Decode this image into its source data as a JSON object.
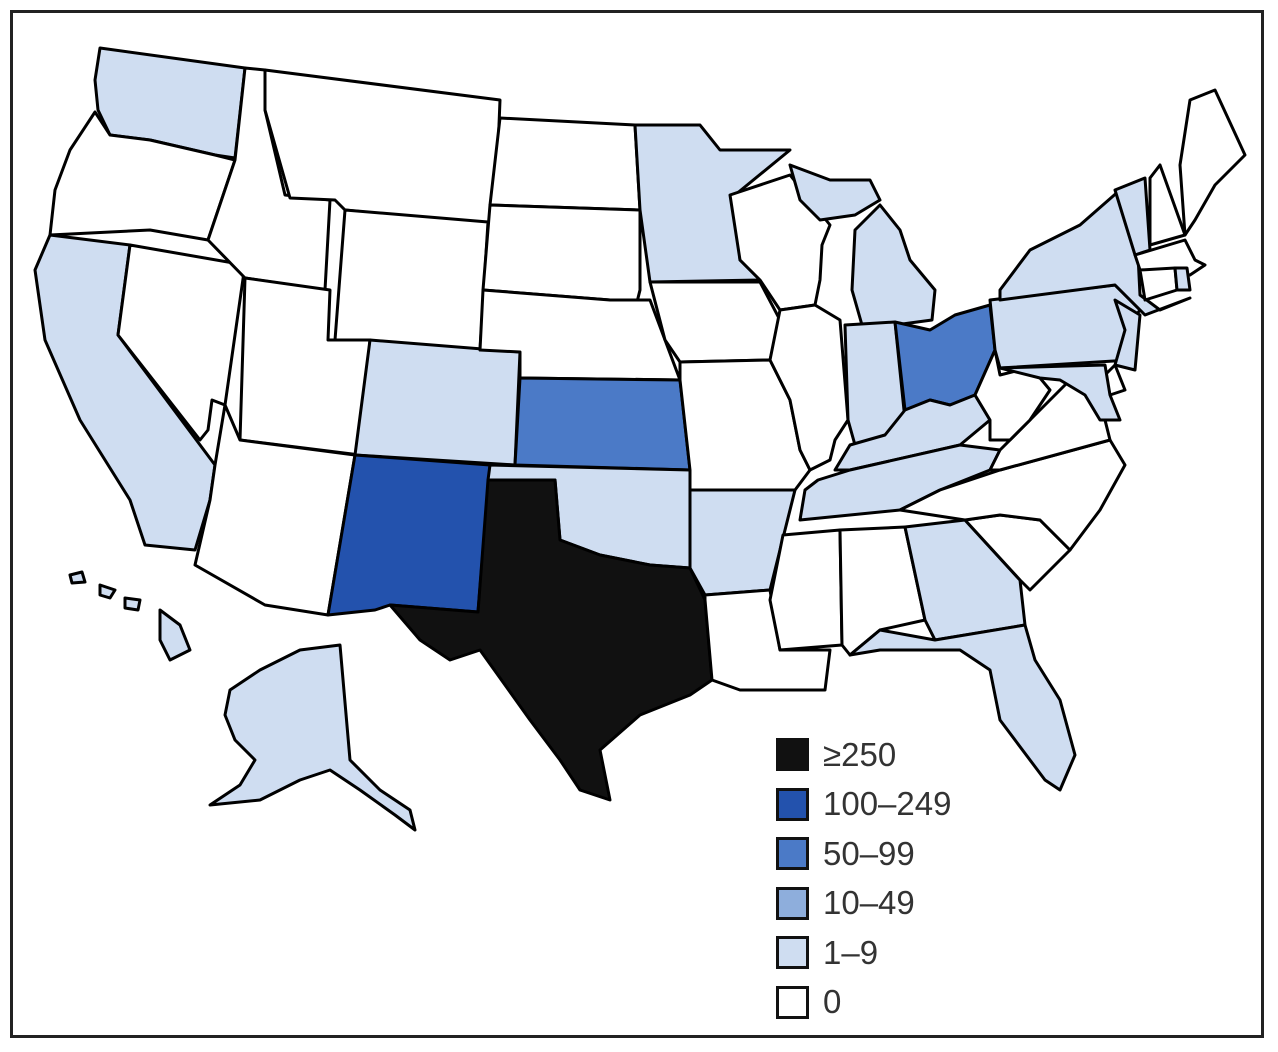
{
  "legend": {
    "items": [
      {
        "label": "≥250",
        "color": "#111111"
      },
      {
        "label": "100–249",
        "color": "#2352ad"
      },
      {
        "label": "50–99",
        "color": "#4b7ac7"
      },
      {
        "label": "10–49",
        "color": "#8eaedc"
      },
      {
        "label": "1–9",
        "color": "#cfddf1"
      },
      {
        "label": "0",
        "color": "#ffffff"
      }
    ]
  },
  "regions": {
    "TX": "≥250",
    "NM": "100–249",
    "KS": "50–99",
    "OH": "50–99",
    "WA": "1–9",
    "CA": "1–9",
    "CO": "1–9",
    "MN": "1–9",
    "MI": "1–9",
    "MIU": "1–9",
    "IN": "1–9",
    "KY": "1–9",
    "TN": "1–9",
    "OK": "1–9",
    "AR": "1–9",
    "GA": "1–9",
    "FL": "1–9",
    "PA": "1–9",
    "NY": "1–9",
    "VT": "1–9",
    "NJ": "1–9",
    "MD": "1–9",
    "RI": "1–9",
    "AK": "1–9",
    "HI": "1–9",
    "OR": "0",
    "NV": "0",
    "ID": "0",
    "MT": "0",
    "WY": "0",
    "UT": "0",
    "AZ": "0",
    "ND": "0",
    "SD": "0",
    "NE": "0",
    "IA": "0",
    "MO": "0",
    "LA": "0",
    "WI": "0",
    "IL": "0",
    "MS": "0",
    "AL": "0",
    "SC": "0",
    "NC": "0",
    "VA": "0",
    "WV": "0",
    "NH": "0",
    "ME": "0",
    "MA": "0",
    "CT": "0",
    "DE": "0"
  }
}
